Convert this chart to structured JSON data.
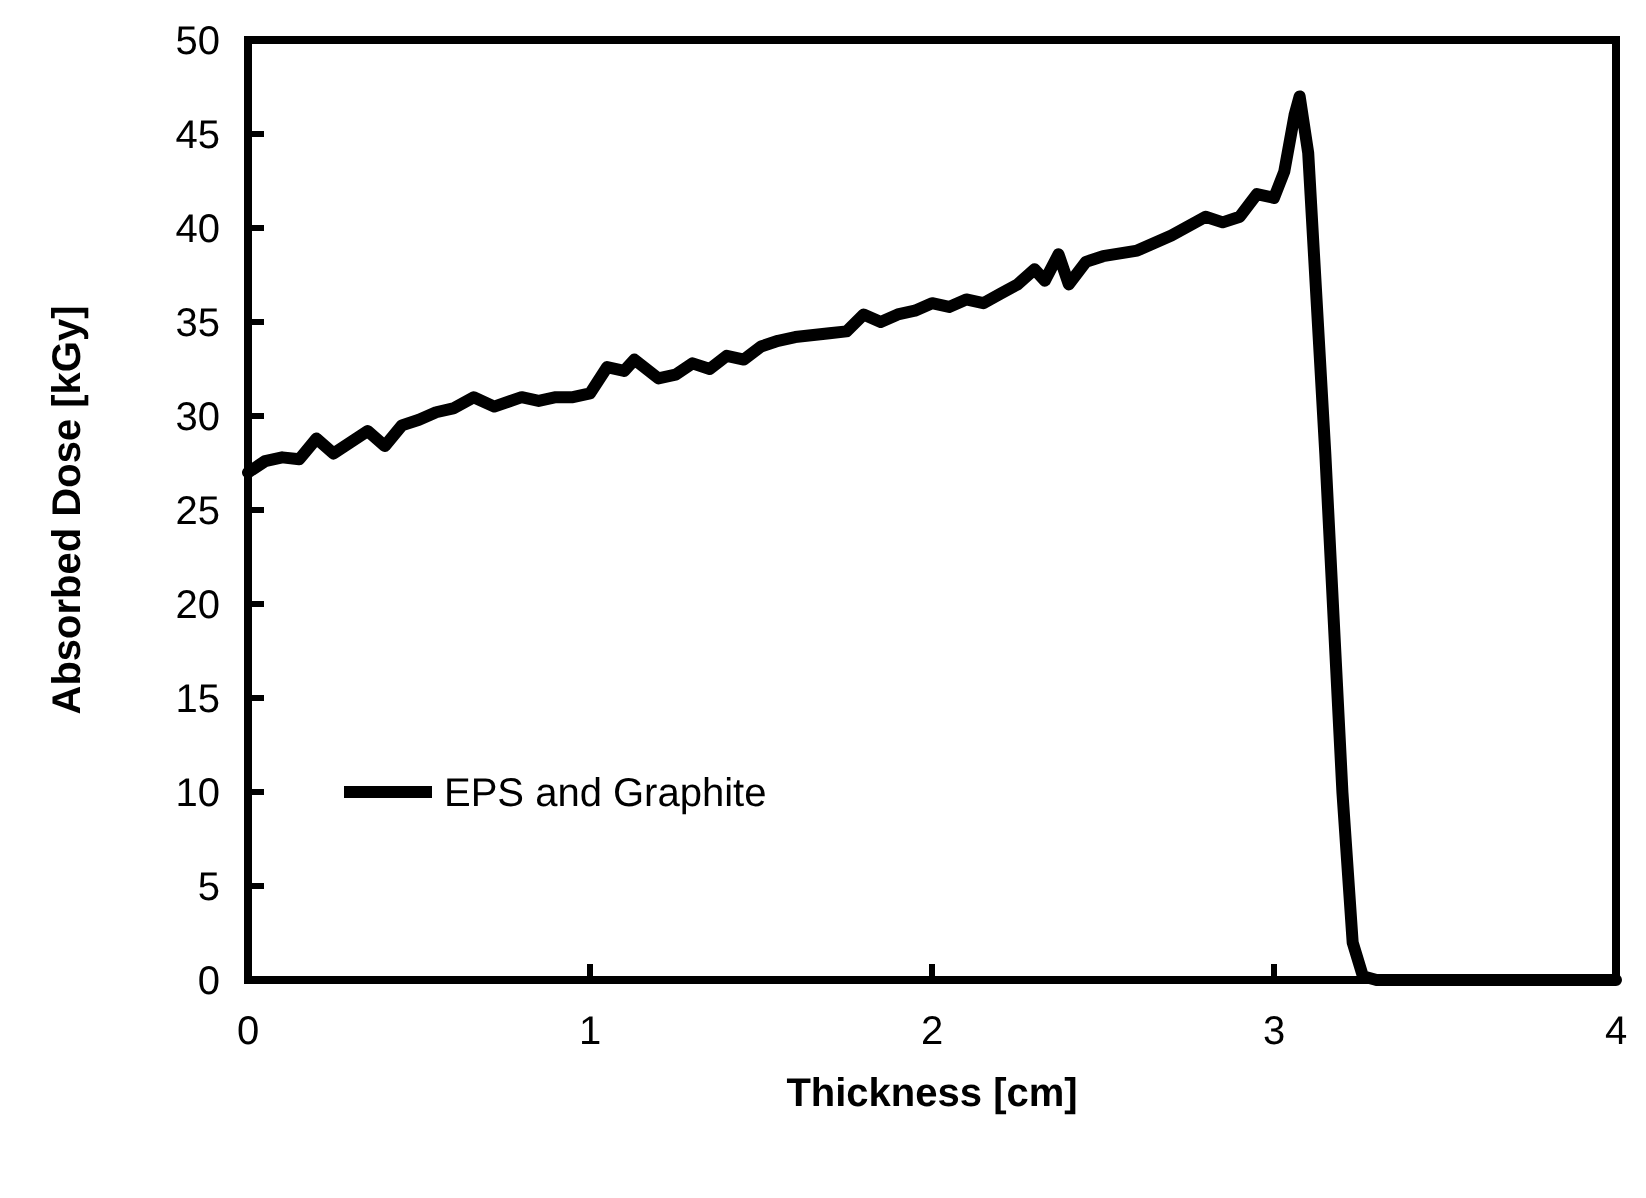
{
  "chart_data": {
    "type": "line",
    "xlabel": "Thickness [cm]",
    "ylabel": "Absorbed Dose [kGy]",
    "xlim": [
      0,
      4
    ],
    "xticks": [
      0,
      1,
      2,
      3,
      4
    ],
    "ylim": [
      0,
      50
    ],
    "yticks": [
      0,
      5,
      10,
      15,
      20,
      25,
      30,
      35,
      40,
      45,
      50
    ],
    "grid": false,
    "legend": "bottom left",
    "marker": "none",
    "line_style": "solid",
    "x": [
      0,
      0.05,
      0.1,
      0.15,
      0.2,
      0.25,
      0.3,
      0.35,
      0.4,
      0.45,
      0.5,
      0.55,
      0.6,
      0.66,
      0.72,
      0.8,
      0.85,
      0.9,
      0.95,
      1.0,
      1.05,
      1.1,
      1.13,
      1.2,
      1.25,
      1.3,
      1.35,
      1.4,
      1.45,
      1.5,
      1.55,
      1.6,
      1.7,
      1.75,
      1.8,
      1.85,
      1.9,
      1.95,
      2.0,
      2.05,
      2.1,
      2.15,
      2.2,
      2.25,
      2.3,
      2.33,
      2.37,
      2.4,
      2.45,
      2.5,
      2.6,
      2.7,
      2.8,
      2.85,
      2.9,
      2.95,
      3.0,
      3.03,
      3.06,
      3.075,
      3.1,
      3.15,
      3.2,
      3.23,
      3.26,
      3.3,
      4.0
    ],
    "series": [
      {
        "name": "EPS and Graphite",
        "color": "#000000",
        "values": [
          27,
          27.6,
          27.8,
          27.7,
          28.8,
          28.0,
          28.6,
          29.2,
          28.4,
          29.5,
          29.8,
          30.2,
          30.4,
          31.0,
          30.5,
          31.0,
          30.8,
          31.0,
          31.0,
          31.2,
          32.6,
          32.4,
          33.0,
          32.0,
          32.2,
          32.8,
          32.5,
          33.2,
          33.0,
          33.7,
          34.0,
          34.2,
          34.4,
          34.5,
          35.4,
          35.0,
          35.4,
          35.6,
          36.0,
          35.8,
          36.2,
          36.0,
          36.5,
          37.0,
          37.8,
          37.2,
          38.6,
          37.0,
          38.2,
          38.5,
          38.8,
          39.6,
          40.6,
          40.3,
          40.6,
          41.8,
          41.6,
          43,
          46,
          47,
          44,
          28,
          10,
          2,
          0.2,
          0,
          0
        ]
      }
    ]
  }
}
